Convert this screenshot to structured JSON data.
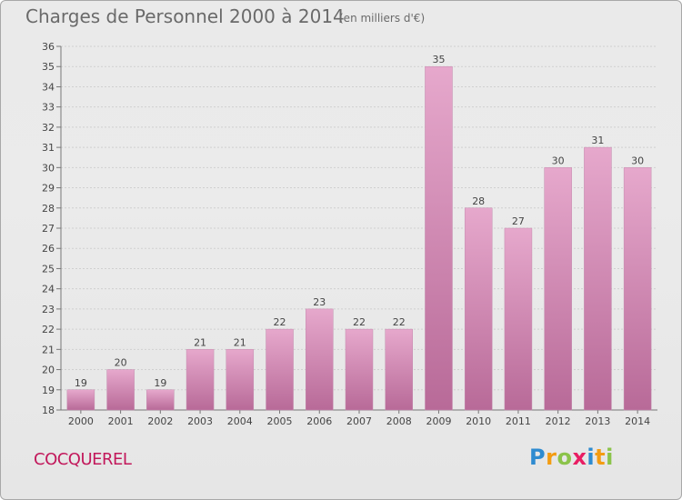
{
  "header": {
    "title": "Charges de Personnel 2000 à 2014",
    "unit": "(en milliers d'€)"
  },
  "footer": {
    "commune": "COCQUEREL",
    "logo_letters": [
      "P",
      "r",
      "o",
      "x",
      "i",
      "t",
      "i"
    ],
    "logo_colors": [
      "#2e8bd0",
      "#f39c12",
      "#8bc34a",
      "#e91e63",
      "#2e8bd0",
      "#f39c12",
      "#8bc34a"
    ]
  },
  "colors": {
    "bar": "#d98cba",
    "bar_dark": "#b86a98",
    "commune": "#c2185b"
  },
  "chart_data": {
    "type": "bar",
    "title": "Charges de Personnel 2000 à 2014",
    "subtitle": "(en milliers d'€)",
    "categories": [
      "2000",
      "2001",
      "2002",
      "2003",
      "2004",
      "2005",
      "2006",
      "2007",
      "2008",
      "2009",
      "2010",
      "2011",
      "2012",
      "2013",
      "2014"
    ],
    "values": [
      19,
      20,
      19,
      21,
      21,
      22,
      23,
      22,
      22,
      35,
      28,
      27,
      30,
      31,
      30
    ],
    "data_labels": [
      "19",
      "20",
      "19",
      "21",
      "21",
      "22",
      "23",
      "22",
      "22",
      "35",
      "28",
      "27",
      "30",
      "31",
      "30"
    ],
    "ylim": [
      18,
      36
    ],
    "yticks": [
      "18",
      "19",
      "20",
      "21",
      "22",
      "23",
      "24",
      "25",
      "26",
      "27",
      "28",
      "29",
      "30",
      "31",
      "32",
      "33",
      "34",
      "35",
      "36"
    ],
    "grid": true,
    "xlabel": "",
    "ylabel": ""
  }
}
